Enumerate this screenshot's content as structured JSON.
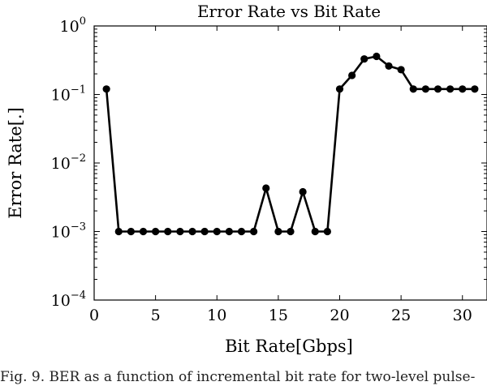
{
  "chart_data": {
    "type": "line",
    "title": "Error Rate vs Bit Rate",
    "xlabel": "Bit Rate[Gbps]",
    "ylabel": "Error Rate[.]",
    "xlim": [
      0,
      32
    ],
    "ylim": [
      0.0001,
      1
    ],
    "yscale": "log",
    "grid": false,
    "x_ticks": [
      0,
      5,
      10,
      15,
      20,
      25,
      30
    ],
    "y_ticks": [
      {
        "value": 0.0001,
        "base": "10",
        "exp": "−4"
      },
      {
        "value": 0.001,
        "base": "10",
        "exp": "−3"
      },
      {
        "value": 0.01,
        "base": "10",
        "exp": "−2"
      },
      {
        "value": 0.1,
        "base": "10",
        "exp": "−1"
      },
      {
        "value": 1,
        "base": "10",
        "exp": "0"
      }
    ],
    "series": [
      {
        "color": "#000000",
        "marker": "circle",
        "x": [
          1,
          2,
          3,
          4,
          5,
          6,
          7,
          8,
          9,
          10,
          11,
          12,
          13,
          14,
          15,
          16,
          17,
          18,
          19,
          20,
          21,
          22,
          23,
          24,
          25,
          26,
          27,
          28,
          29,
          30,
          31
        ],
        "y": [
          0.12,
          0.001,
          0.001,
          0.001,
          0.001,
          0.001,
          0.001,
          0.001,
          0.001,
          0.001,
          0.001,
          0.001,
          0.001,
          0.0043,
          0.001,
          0.001,
          0.0038,
          0.001,
          0.001,
          0.12,
          0.19,
          0.33,
          0.36,
          0.26,
          0.23,
          0.12,
          0.12,
          0.12,
          0.12,
          0.12,
          0.12
        ]
      }
    ]
  },
  "caption": "Fig. 9.  BER as a function of incremental bit rate for two-level pulse-"
}
